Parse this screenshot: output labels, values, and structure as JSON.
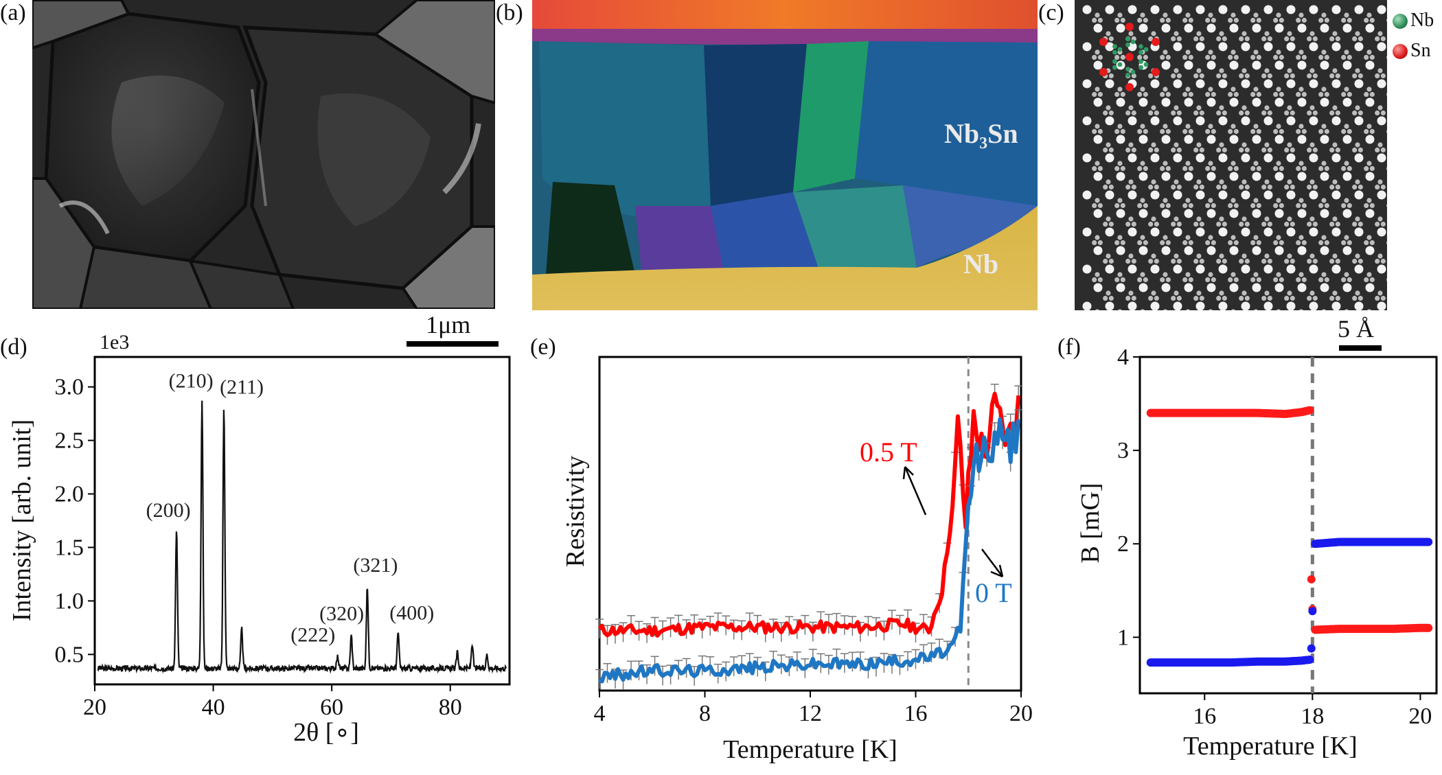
{
  "panels": {
    "a": {
      "label": "(a)"
    },
    "b": {
      "label": "(b)",
      "region_top": "Nb₃Sn",
      "region_bottom": "Nb"
    },
    "c": {
      "label": "(c)",
      "legend": [
        {
          "name": "Nb",
          "color": "#2e8b57"
        },
        {
          "name": "Sn",
          "color": "#d61a1a"
        }
      ]
    },
    "d": {
      "label": "(d)"
    },
    "e": {
      "label": "(e)"
    },
    "f": {
      "label": "(f)"
    }
  },
  "scalebars": {
    "a": "1μm",
    "c": "5 Å"
  },
  "chart_data": [
    {
      "id": "d",
      "type": "line",
      "xlabel": "2θ [∘]",
      "ylabel": "Intensity [arb. unit]",
      "y_multiplier": "1e3",
      "xlim": [
        20,
        90
      ],
      "ylim": [
        0.22,
        3.28
      ],
      "xticks": [
        "20",
        "40",
        "60",
        "80"
      ],
      "xtick_values": [
        20,
        40,
        60,
        80
      ],
      "yticks": [
        "0.5",
        "1.0",
        "1.5",
        "2.0",
        "2.5",
        "3.0"
      ],
      "ytick_values": [
        0.5,
        1.0,
        1.5,
        2.0,
        2.5,
        3.0
      ],
      "baseline": 0.37,
      "peaks": [
        {
          "x": 33.8,
          "y": 1.67,
          "label": "(200)"
        },
        {
          "x": 38.1,
          "y": 2.88,
          "label": "(210)"
        },
        {
          "x": 41.8,
          "y": 2.82,
          "label": "(211)"
        },
        {
          "x": 44.8,
          "y": 0.74,
          "label": ""
        },
        {
          "x": 61.0,
          "y": 0.48,
          "label": "(222)"
        },
        {
          "x": 63.3,
          "y": 0.68,
          "label": "(320)"
        },
        {
          "x": 66.0,
          "y": 1.13,
          "label": "(321)"
        },
        {
          "x": 71.2,
          "y": 0.71,
          "label": "(400)"
        },
        {
          "x": 81.2,
          "y": 0.52,
          "label": ""
        },
        {
          "x": 83.7,
          "y": 0.6,
          "label": ""
        },
        {
          "x": 86.2,
          "y": 0.5,
          "label": ""
        }
      ]
    },
    {
      "id": "e",
      "type": "line",
      "xlabel": "Temperature [K]",
      "ylabel": "Resistivity",
      "xlim": [
        4,
        20
      ],
      "ylim": [
        0,
        1
      ],
      "xticks": [
        "4",
        "8",
        "12",
        "16",
        "20"
      ],
      "xtick_values": [
        4,
        8,
        12,
        16,
        20
      ],
      "vline_x": 18,
      "series": [
        {
          "name": "0.5 T",
          "color": "#ff0000",
          "x": [
            4.0,
            6.0,
            8.0,
            10.0,
            12.0,
            14.0,
            15.5,
            16.5,
            17.0,
            17.4,
            17.6,
            17.9,
            18.2,
            18.6,
            19.0,
            19.5,
            20.0
          ],
          "y": [
            0.18,
            0.18,
            0.19,
            0.19,
            0.19,
            0.19,
            0.2,
            0.18,
            0.3,
            0.55,
            0.8,
            0.5,
            0.82,
            0.7,
            0.85,
            0.75,
            0.88
          ]
        },
        {
          "name": "0 T",
          "color": "#1f77c4",
          "x": [
            4.0,
            6.0,
            8.0,
            10.0,
            12.0,
            14.0,
            15.5,
            16.5,
            17.2,
            17.7,
            18.0,
            18.3,
            18.7,
            19.2,
            19.6,
            20.0
          ],
          "y": [
            0.04,
            0.06,
            0.06,
            0.07,
            0.08,
            0.08,
            0.09,
            0.1,
            0.12,
            0.16,
            0.55,
            0.7,
            0.72,
            0.76,
            0.74,
            0.78
          ]
        }
      ]
    },
    {
      "id": "f",
      "type": "scatter",
      "xlabel": "Temperature [K]",
      "ylabel": "B [mG]",
      "xlim": [
        14.8,
        20.3
      ],
      "ylim": [
        0.4,
        4.0
      ],
      "xticks": [
        "16",
        "18",
        "20"
      ],
      "xtick_values": [
        16,
        18,
        20
      ],
      "yticks": [
        "1",
        "2",
        "3",
        "4"
      ],
      "ytick_values": [
        1,
        2,
        3,
        4
      ],
      "vline_x": 18,
      "series": [
        {
          "name": "",
          "color": "#ff1a1a",
          "x": [
            15.0,
            15.5,
            16.0,
            16.5,
            17.0,
            17.5,
            17.8,
            17.95,
            17.98,
            18.0,
            18.05,
            18.5,
            19.0,
            19.5,
            20.0,
            20.15
          ],
          "y": [
            3.4,
            3.4,
            3.4,
            3.4,
            3.4,
            3.39,
            3.41,
            3.43,
            1.62,
            1.3,
            1.08,
            1.09,
            1.09,
            1.09,
            1.1,
            1.1
          ]
        },
        {
          "name": "",
          "color": "#1a1aee",
          "x": [
            15.0,
            15.5,
            16.0,
            16.5,
            17.0,
            17.5,
            17.8,
            17.95,
            17.98,
            18.0,
            18.05,
            18.5,
            19.0,
            19.5,
            20.0,
            20.15
          ],
          "y": [
            0.73,
            0.73,
            0.73,
            0.73,
            0.74,
            0.74,
            0.75,
            0.76,
            0.88,
            1.28,
            2.0,
            2.02,
            2.02,
            2.02,
            2.02,
            2.02
          ]
        }
      ]
    }
  ]
}
